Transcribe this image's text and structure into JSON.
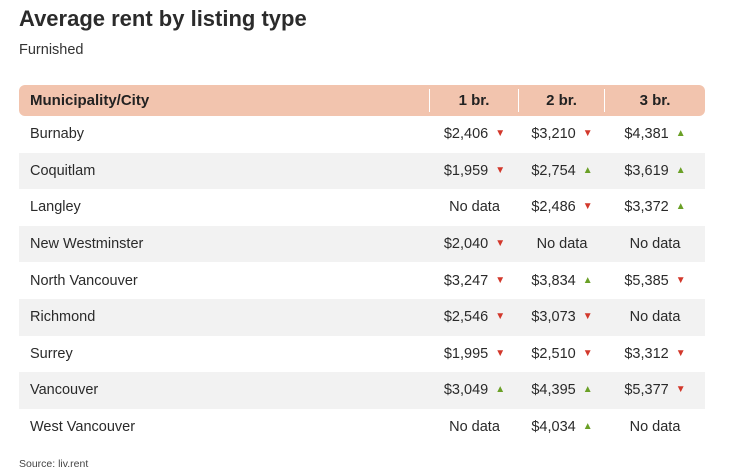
{
  "chart_data": {
    "type": "table",
    "title": "Average rent by listing type",
    "subtitle": "Furnished",
    "columns": [
      "Municipality/City",
      "1 br.",
      "2 br.",
      "3 br."
    ],
    "rows": [
      {
        "city": "Burnaby",
        "cells": [
          {
            "value": "$2,406",
            "trend": "down"
          },
          {
            "value": "$3,210",
            "trend": "down"
          },
          {
            "value": "$4,381",
            "trend": "up"
          }
        ]
      },
      {
        "city": "Coquitlam",
        "cells": [
          {
            "value": "$1,959",
            "trend": "down"
          },
          {
            "value": "$2,754",
            "trend": "up"
          },
          {
            "value": "$3,619",
            "trend": "up"
          }
        ]
      },
      {
        "city": "Langley",
        "cells": [
          {
            "value": "No data",
            "trend": ""
          },
          {
            "value": "$2,486",
            "trend": "down"
          },
          {
            "value": "$3,372",
            "trend": "up"
          }
        ]
      },
      {
        "city": "New Westminster",
        "cells": [
          {
            "value": "$2,040",
            "trend": "down"
          },
          {
            "value": "No data",
            "trend": ""
          },
          {
            "value": "No data",
            "trend": ""
          }
        ]
      },
      {
        "city": "North Vancouver",
        "cells": [
          {
            "value": "$3,247",
            "trend": "down"
          },
          {
            "value": "$3,834",
            "trend": "up"
          },
          {
            "value": "$5,385",
            "trend": "down"
          }
        ]
      },
      {
        "city": "Richmond",
        "cells": [
          {
            "value": "$2,546",
            "trend": "down"
          },
          {
            "value": "$3,073",
            "trend": "down"
          },
          {
            "value": "No data",
            "trend": ""
          }
        ]
      },
      {
        "city": "Surrey",
        "cells": [
          {
            "value": "$1,995",
            "trend": "down"
          },
          {
            "value": "$2,510",
            "trend": "down"
          },
          {
            "value": "$3,312",
            "trend": "down"
          }
        ]
      },
      {
        "city": "Vancouver",
        "cells": [
          {
            "value": "$3,049",
            "trend": "up"
          },
          {
            "value": "$4,395",
            "trend": "up"
          },
          {
            "value": "$5,377",
            "trend": "down"
          }
        ]
      },
      {
        "city": "West Vancouver",
        "cells": [
          {
            "value": "No data",
            "trend": ""
          },
          {
            "value": "$4,034",
            "trend": "up"
          },
          {
            "value": "No data",
            "trend": ""
          }
        ]
      }
    ],
    "source": "Source: liv.rent",
    "colors": {
      "header_bg": "#f2c4ae",
      "stripe_bg": "#f2f2f2",
      "up": "#6aa026",
      "down": "#d2382b"
    }
  }
}
